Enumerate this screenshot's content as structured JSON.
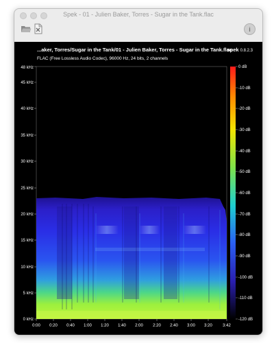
{
  "window": {
    "title": "Spek - 01 - Julien Baker, Torres - Sugar in the Tank.flac"
  },
  "toolbar": {
    "open_icon": "folder-open-icon",
    "save_icon": "save-icon",
    "about_icon": "info-icon"
  },
  "spectrogram": {
    "file_title": "...aker, Torres/Sugar in the Tank/01 - Julien Baker, Torres - Sugar in the Tank.flac",
    "file_info": "FLAC (Free Lossless Audio Codec), 96000 Hz, 24 bits, 2 channels",
    "app_name": "spek",
    "app_version": "0.8.2.3",
    "freq_ticks": [
      "0 kHz",
      "5 kHz",
      "10 kHz",
      "15 kHz",
      "20 kHz",
      "25 kHz",
      "30 kHz",
      "35 kHz",
      "40 kHz",
      "45 kHz",
      "48 kHz"
    ],
    "time_ticks": [
      "0:00",
      "0:20",
      "0:40",
      "1:00",
      "1:20",
      "1:40",
      "2:00",
      "2:20",
      "2:40",
      "3:00",
      "3:20",
      "3:42"
    ],
    "db_ticks": [
      "0 dB",
      "-10 dB",
      "-20 dB",
      "-30 dB",
      "-40 dB",
      "-50 dB",
      "-60 dB",
      "-70 dB",
      "-80 dB",
      "-90 dB",
      "-100 dB",
      "-110 dB",
      "-120 dB"
    ],
    "content_cutoff_khz": 23,
    "duration_seconds": 222
  }
}
